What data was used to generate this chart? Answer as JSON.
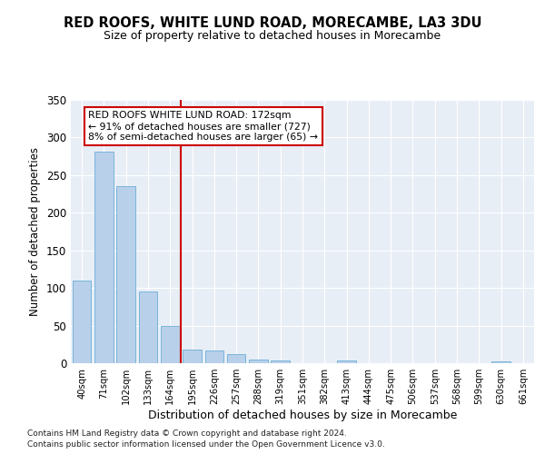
{
  "title": "RED ROOFS, WHITE LUND ROAD, MORECAMBE, LA3 3DU",
  "subtitle": "Size of property relative to detached houses in Morecambe",
  "xlabel": "Distribution of detached houses by size in Morecambe",
  "ylabel": "Number of detached properties",
  "categories": [
    "40sqm",
    "71sqm",
    "102sqm",
    "133sqm",
    "164sqm",
    "195sqm",
    "226sqm",
    "257sqm",
    "288sqm",
    "319sqm",
    "351sqm",
    "382sqm",
    "413sqm",
    "444sqm",
    "475sqm",
    "506sqm",
    "537sqm",
    "568sqm",
    "599sqm",
    "630sqm",
    "661sqm"
  ],
  "values": [
    110,
    281,
    235,
    95,
    49,
    18,
    17,
    12,
    5,
    4,
    0,
    0,
    4,
    0,
    0,
    0,
    0,
    0,
    0,
    3,
    0
  ],
  "bar_color": "#b8d0ea",
  "bar_edge_color": "#6aaed6",
  "background_color": "#e8eef6",
  "grid_color": "#ffffff",
  "red_line_x": 4.5,
  "annotation_text": "RED ROOFS WHITE LUND ROAD: 172sqm\n← 91% of detached houses are smaller (727)\n8% of semi-detached houses are larger (65) →",
  "annotation_box_color": "#ffffff",
  "annotation_box_edge": "#cc0000",
  "red_line_color": "#cc0000",
  "ylim": [
    0,
    350
  ],
  "yticks": [
    0,
    50,
    100,
    150,
    200,
    250,
    300,
    350
  ],
  "footnote1": "Contains HM Land Registry data © Crown copyright and database right 2024.",
  "footnote2": "Contains public sector information licensed under the Open Government Licence v3.0."
}
